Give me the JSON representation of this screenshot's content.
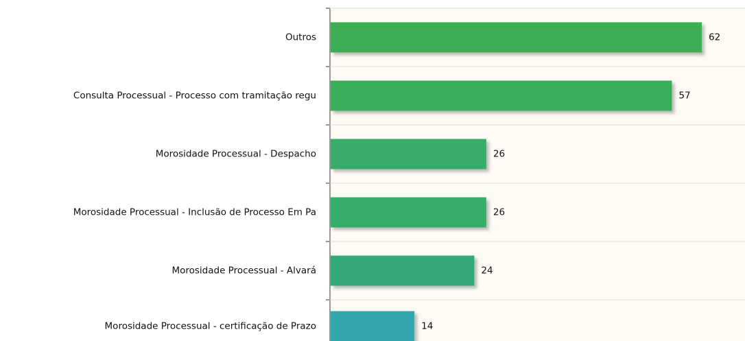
{
  "chart_data": {
    "type": "barh",
    "categories": [
      "Outros",
      "Consulta Processual - Processo com tramitação regu",
      "Morosidade Processual - Despacho",
      "Morosidade Processual - Inclusão de Processo Em Pa",
      "Morosidade Processual - Alvará",
      "Morosidade Processual - certificação de Prazo"
    ],
    "values": [
      62,
      57,
      26,
      26,
      24,
      14
    ],
    "colors": [
      "#3aae57",
      "#3aae5a",
      "#37ac68",
      "#37ac6a",
      "#34a97a",
      "#31a7ae"
    ]
  }
}
